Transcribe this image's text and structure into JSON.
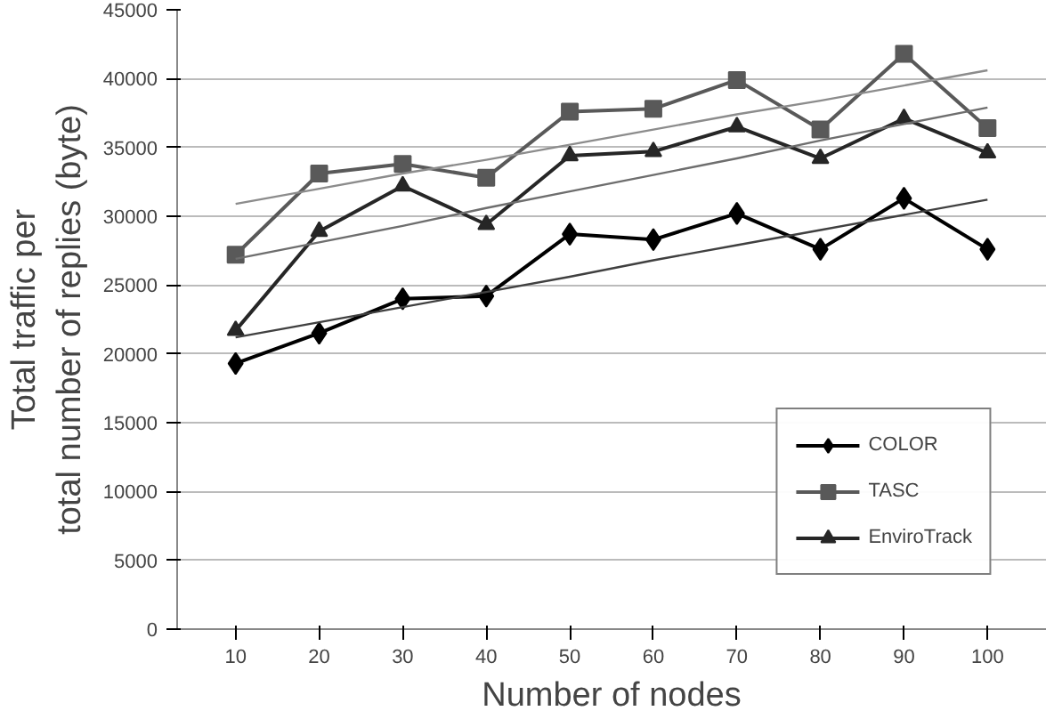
{
  "chart_data": {
    "type": "line",
    "xlabel": "Number of nodes",
    "ylabel": "Total traffic per\ntotal number of replies (byte)",
    "x": [
      10,
      20,
      30,
      40,
      50,
      60,
      70,
      80,
      90,
      100
    ],
    "xlim": [
      3,
      107
    ],
    "xticks": [
      10,
      20,
      30,
      40,
      50,
      60,
      70,
      80,
      90,
      100
    ],
    "ylim": [
      0,
      45000
    ],
    "yticks": [
      0,
      5000,
      10000,
      15000,
      20000,
      25000,
      30000,
      35000,
      40000,
      45000
    ],
    "grid": "y",
    "legend": "bottom right",
    "series": [
      {
        "name": "COLOR",
        "color": "#000000",
        "marker": "diamond",
        "values": [
          19300,
          21500,
          24000,
          24200,
          28700,
          28300,
          30200,
          27600,
          31300,
          27600
        ]
      },
      {
        "name": "TASC",
        "color": "#595959",
        "marker": "square",
        "values": [
          27200,
          33100,
          33800,
          32800,
          37600,
          37800,
          39900,
          36300,
          41800,
          36400
        ]
      },
      {
        "name": "EnviroTrack",
        "color": "#262626",
        "marker": "triangle",
        "values": [
          21700,
          28900,
          32200,
          29400,
          34400,
          34700,
          36500,
          34200,
          37100,
          34600
        ]
      },
      {
        "type": "line",
        "color": "#404040",
        "marker": "none",
        "values": [
          21200,
          22300,
          23400,
          24500,
          25600,
          26800,
          27900,
          29000,
          30100,
          31200
        ]
      },
      {
        "type": "line",
        "color": "#8c8c8c",
        "marker": "none",
        "values": [
          30900,
          32000,
          33100,
          34100,
          35200,
          36300,
          37400,
          38400,
          39500,
          40600
        ]
      },
      {
        "type": "line",
        "color": "#6e6e6e",
        "marker": "none",
        "values": [
          26900,
          28100,
          29300,
          30600,
          31800,
          33000,
          34200,
          35500,
          36700,
          37900
        ]
      }
    ]
  }
}
